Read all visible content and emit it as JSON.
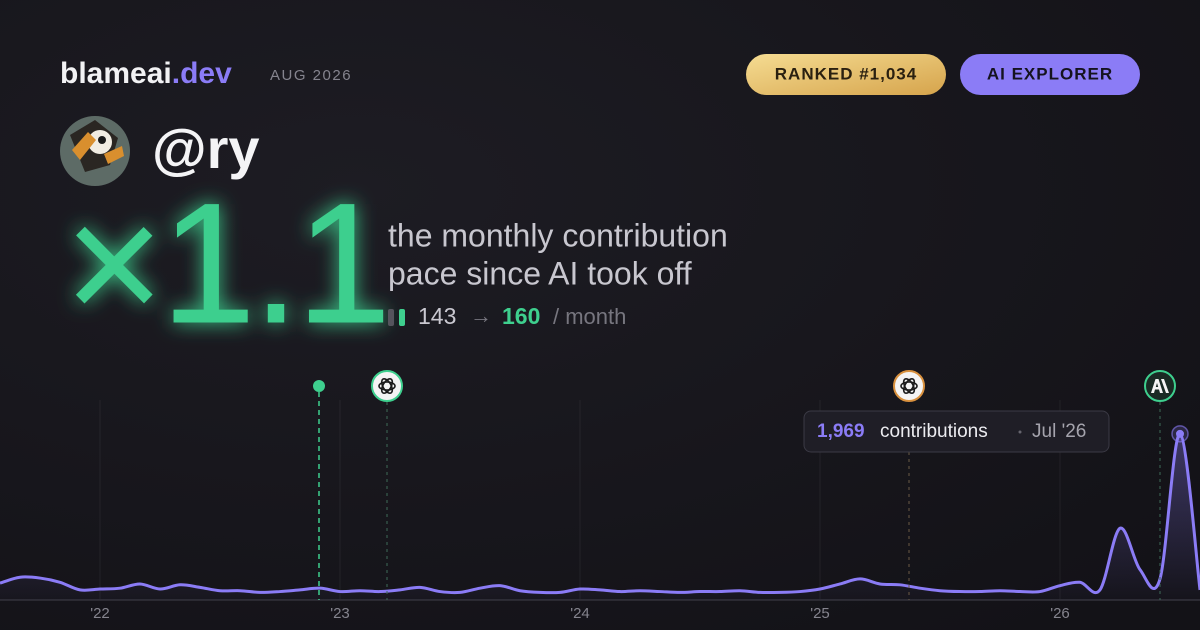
{
  "header": {
    "site": "blameai",
    "tld": ".dev",
    "date": "AUG 2026",
    "badges": [
      "RANKED #1,034",
      "AI EXPLORER"
    ]
  },
  "user": {
    "handle": "@ry"
  },
  "hero": {
    "multiplier": "×1.1",
    "description": [
      "the monthly contribution",
      "pace since AI took off"
    ],
    "stats": {
      "before": "143",
      "arrow": "→",
      "after": "160",
      "unit": "/ month"
    }
  },
  "chart_data": {
    "type": "line",
    "categories": [
      null,
      null,
      null,
      null,
      null,
      "'22",
      null,
      null,
      null,
      null,
      null,
      null,
      null,
      null,
      null,
      null,
      null,
      "'23",
      null,
      null,
      null,
      null,
      null,
      null,
      null,
      null,
      null,
      null,
      null,
      "'24",
      null,
      null,
      null,
      null,
      null,
      null,
      null,
      null,
      null,
      null,
      null,
      "'25",
      null,
      null,
      null,
      null,
      null,
      null,
      null,
      null,
      null,
      null,
      null,
      "'26",
      null,
      null,
      null,
      null,
      null,
      null,
      null
    ],
    "series": [
      {
        "name": "contributions",
        "color": "#8b7cf6",
        "values": [
          200,
          270,
          260,
          210,
          120,
          130,
          140,
          190,
          130,
          180,
          150,
          110,
          110,
          90,
          100,
          120,
          140,
          100,
          110,
          100,
          120,
          150,
          100,
          90,
          140,
          170,
          110,
          90,
          90,
          130,
          120,
          100,
          110,
          100,
          90,
          100,
          100,
          110,
          90,
          90,
          100,
          130,
          190,
          250,
          190,
          180,
          140,
          110,
          100,
          100,
          110,
          100,
          100,
          170,
          210,
          120,
          850,
          360,
          250,
          1969,
          120
        ]
      }
    ],
    "ylim": [
      0,
      2370
    ],
    "tooltip": {
      "value_text": "1,969",
      "text": "contributions",
      "date": "Jul '26"
    }
  }
}
